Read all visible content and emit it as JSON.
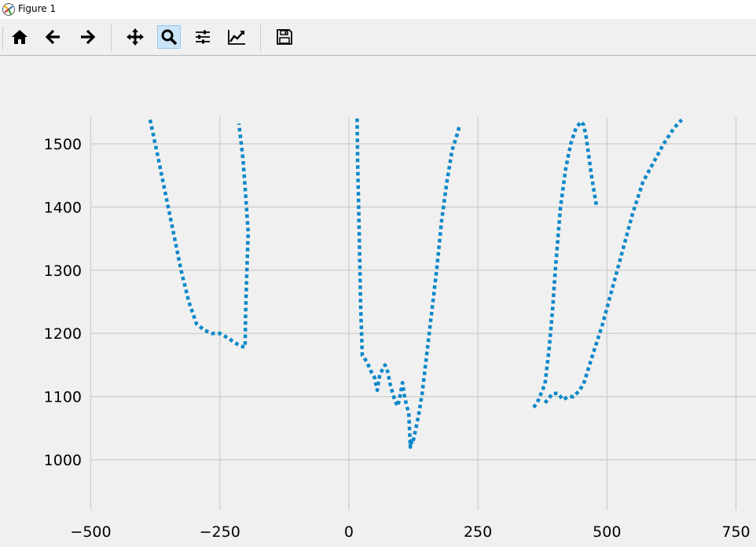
{
  "window": {
    "title": "Figure 1"
  },
  "toolbar": {
    "buttons": [
      {
        "name": "home",
        "icon": "home-icon",
        "active": false
      },
      {
        "name": "back",
        "icon": "arrow-left-icon",
        "active": false
      },
      {
        "name": "forward",
        "icon": "arrow-right-icon",
        "active": false
      },
      {
        "name": "pan",
        "icon": "move-icon",
        "active": false
      },
      {
        "name": "zoom",
        "icon": "zoom-icon",
        "active": true
      },
      {
        "name": "configure-subplots",
        "icon": "sliders-icon",
        "active": false
      },
      {
        "name": "edit-axis",
        "icon": "line-chart-icon",
        "active": false
      },
      {
        "name": "save",
        "icon": "floppy-disk-icon",
        "active": false
      }
    ]
  },
  "colors": {
    "series": "#0a87c9",
    "grid": "#cbcbcb",
    "background": "#f0f0f0",
    "active_button": "#cce4f7"
  },
  "chart_data": {
    "type": "line",
    "line_style": "dotted",
    "grid": true,
    "xlim": [
      -500,
      790
    ],
    "ylim": [
      920,
      1543
    ],
    "xticks": [
      -500,
      -250,
      0,
      250,
      500,
      750
    ],
    "xtick_labels": [
      "−500",
      "−250",
      "0",
      "250",
      "500",
      "750"
    ],
    "yticks": [
      1000,
      1100,
      1200,
      1300,
      1400,
      1500
    ],
    "ytick_labels": [
      "1000",
      "1100",
      "1200",
      "1300",
      "1400",
      "1500"
    ],
    "series": [
      {
        "x": [
          -385,
          -370,
          -355,
          -340,
          -325,
          -310,
          -295,
          -280,
          -265,
          -250,
          -235,
          -220,
          -210,
          -201,
          -200,
          -198,
          -195,
          -200,
          -205,
          -213
        ],
        "y": [
          1538,
          1480,
          1420,
          1360,
          1300,
          1250,
          1215,
          1205,
          1200,
          1200,
          1193,
          1185,
          1180,
          1178,
          1230,
          1290,
          1360,
          1420,
          1475,
          1532
        ]
      },
      {
        "x": [
          16,
          17,
          19,
          21,
          23,
          26,
          35,
          43,
          50,
          55,
          60,
          70,
          75,
          80,
          85,
          90,
          95,
          100,
          104,
          108,
          112,
          116,
          119,
          120,
          123,
          126,
          130,
          135,
          142,
          150,
          160,
          170,
          180,
          190,
          200,
          208,
          215
        ],
        "y": [
          1540,
          1470,
          1400,
          1320,
          1240,
          1165,
          1155,
          1140,
          1130,
          1110,
          1135,
          1150,
          1140,
          1120,
          1105,
          1092,
          1085,
          1105,
          1122,
          1100,
          1085,
          1075,
          1020,
          1030,
          1025,
          1035,
          1050,
          1070,
          1105,
          1160,
          1230,
          1300,
          1380,
          1440,
          1490,
          1510,
          1530
        ]
      },
      {
        "x": [
          358,
          365,
          370,
          375,
          380,
          388,
          395,
          400,
          405,
          410,
          420,
          425,
          430,
          440,
          450,
          455,
          460,
          470,
          480
        ],
        "y": [
          1083,
          1090,
          1100,
          1110,
          1120,
          1175,
          1240,
          1300,
          1350,
          1400,
          1460,
          1480,
          1500,
          1525,
          1535,
          1530,
          1510,
          1450,
          1400
        ]
      },
      {
        "x": [
          380,
          395,
          405,
          415,
          425,
          435,
          445,
          455,
          470,
          490,
          510,
          530,
          550,
          570,
          590,
          610,
          630,
          645
        ],
        "y": [
          1090,
          1105,
          1105,
          1095,
          1100,
          1100,
          1108,
          1120,
          1160,
          1210,
          1270,
          1330,
          1390,
          1440,
          1470,
          1500,
          1525,
          1538
        ]
      }
    ]
  }
}
